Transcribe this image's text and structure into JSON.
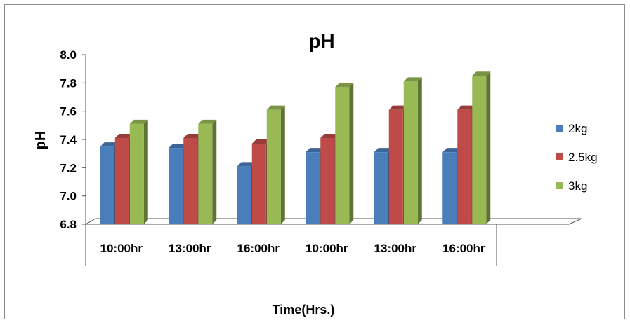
{
  "chart_data": {
    "type": "bar",
    "title": "pH",
    "xlabel": "Time(Hrs.)",
    "ylabel": "pH",
    "ylim": [
      6.8,
      8.0
    ],
    "yticks": [
      "8.0",
      "7.8",
      "7.6",
      "7.4",
      "7.2",
      "7.0",
      "6.8"
    ],
    "categories": [
      "10:00hr",
      "13:00hr",
      "16:00hr",
      "10:00hr",
      "13:00hr",
      "16:00hr"
    ],
    "series": [
      {
        "name": "2kg",
        "color": "#4a7ebb",
        "values": [
          7.35,
          7.34,
          7.21,
          7.31,
          7.31,
          7.31
        ]
      },
      {
        "name": "2.5kg",
        "color": "#be4b48",
        "values": [
          7.41,
          7.41,
          7.37,
          7.41,
          7.61,
          7.61
        ]
      },
      {
        "name": "3kg",
        "color": "#98b954",
        "values": [
          7.51,
          7.51,
          7.61,
          7.77,
          7.81,
          7.85
        ]
      }
    ],
    "legend_position": "right",
    "grid": false,
    "three_d": true
  }
}
